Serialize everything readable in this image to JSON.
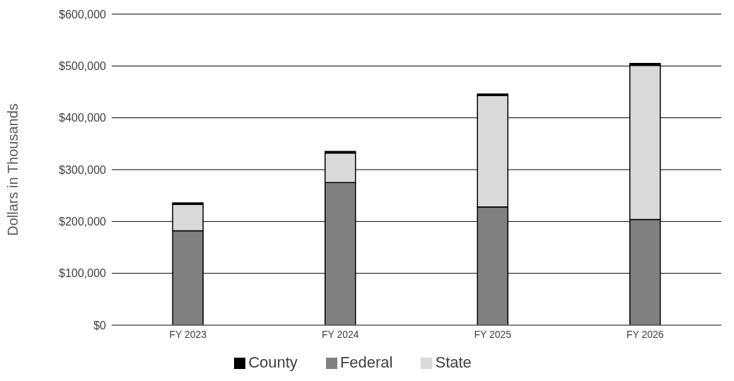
{
  "chart_data": {
    "type": "bar",
    "stacked": true,
    "ylabel": "Dollars in Thousands",
    "categories": [
      "FY 2023",
      "FY 2024",
      "FY 2025",
      "FY 2026"
    ],
    "series": [
      {
        "name": "Federal",
        "color": "#808080",
        "values": [
          182000,
          275000,
          228000,
          204000
        ]
      },
      {
        "name": "State",
        "color": "#d9d9d9",
        "values": [
          51000,
          57000,
          215000,
          297000
        ]
      },
      {
        "name": "County",
        "color": "#000000",
        "values": [
          3000,
          3000,
          3000,
          4000
        ]
      }
    ],
    "ylim": [
      0,
      600000
    ],
    "yticks": [
      {
        "value": 0,
        "label": "$0"
      },
      {
        "value": 100000,
        "label": "$100,000"
      },
      {
        "value": 200000,
        "label": "$200,000"
      },
      {
        "value": 300000,
        "label": "$300,000"
      },
      {
        "value": 400000,
        "label": "$400,000"
      },
      {
        "value": 500000,
        "label": "$500,000"
      },
      {
        "value": 600000,
        "label": "$600,000"
      }
    ],
    "grid": "y",
    "legend": "bottom"
  }
}
